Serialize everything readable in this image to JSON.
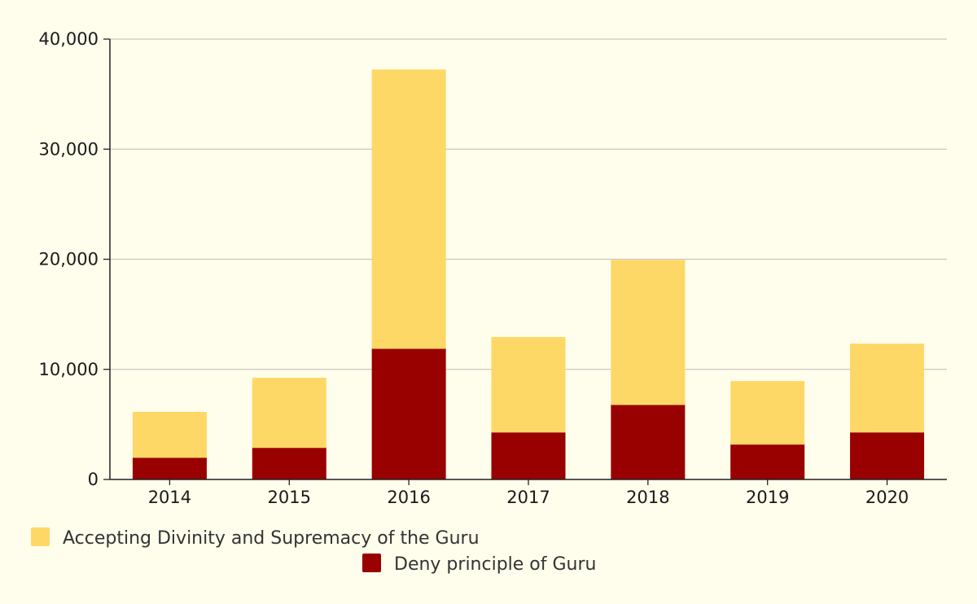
{
  "chart_data": {
    "type": "bar",
    "stacked": true,
    "categories": [
      "2014",
      "2015",
      "2016",
      "2017",
      "2018",
      "2019",
      "2020"
    ],
    "series": [
      {
        "name": "Deny principle of Guru",
        "color": "#990000",
        "values": [
          2000,
          2900,
          11900,
          4300,
          6800,
          3200,
          4300
        ]
      },
      {
        "name": "Accepting Divinity and Supremacy of the Guru",
        "color": "#fed866",
        "values": [
          4100,
          6300,
          25300,
          8600,
          13100,
          5700,
          8000
        ]
      }
    ],
    "ylim": [
      0,
      40000
    ],
    "yticks": [
      "0",
      "10,000",
      "20,000",
      "30,000",
      "40,000"
    ],
    "ytick_values": [
      0,
      10000,
      20000,
      30000,
      40000
    ],
    "grid": true,
    "legend": "bottom",
    "legend_order": [
      1,
      0
    ]
  }
}
